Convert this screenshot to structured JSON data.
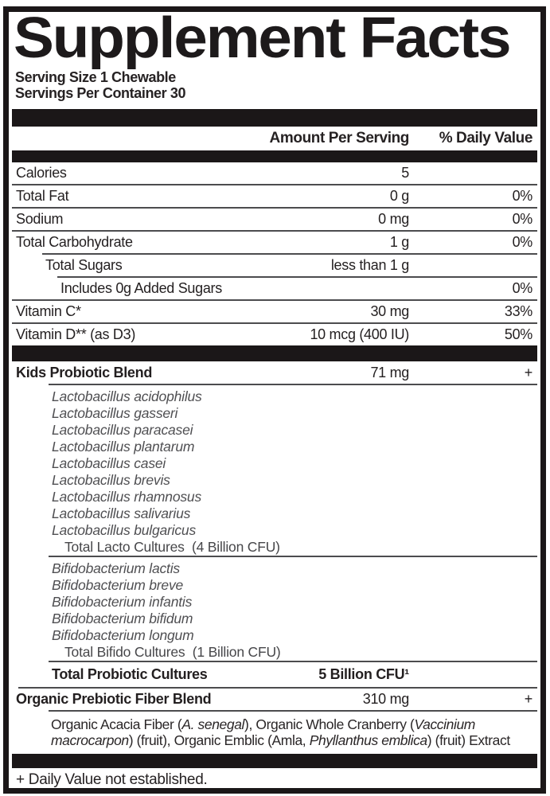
{
  "label": {
    "title": "Supplement Facts",
    "serving_size": "Serving Size 1 Chewable",
    "servings_per_container": "Servings Per Container 30",
    "col_amount": "Amount Per Serving",
    "col_dv": "% Daily Value",
    "footnote": "+ Daily Value not established.",
    "text_color": "#231f20",
    "bar_color": "#1b1718",
    "rule_color": "#4c4c4e"
  },
  "nutrients": [
    {
      "label": "Calories",
      "amount": "5",
      "dv": "",
      "indent": 0,
      "sep": 0
    },
    {
      "label": "Total Fat",
      "amount": "0 g",
      "dv": "0%",
      "indent": 0,
      "sep": 0
    },
    {
      "label": "Sodium",
      "amount": "0 mg",
      "dv": "0%",
      "indent": 0,
      "sep": 0
    },
    {
      "label": "Total Carbohydrate",
      "amount": "1 g",
      "dv": "0%",
      "indent": 0,
      "sep": 38
    },
    {
      "label": "Total Sugars",
      "amount": "less than 1 g",
      "dv": "",
      "indent": 1,
      "sep": 57
    },
    {
      "label": "Includes 0g Added Sugars",
      "amount": "",
      "dv": "0%",
      "indent": 2,
      "sep": 0
    },
    {
      "label": "Vitamin C*",
      "amount": "30 mg",
      "dv": "33%",
      "indent": 0,
      "sep": 0
    },
    {
      "label": "Vitamin D** (as D3)",
      "amount": "10 mcg (400 IU)",
      "dv": "50%",
      "indent": 0,
      "sep": -1
    }
  ],
  "probiotics": {
    "blend": {
      "label": "Kids Probiotic Blend",
      "amount": "71 mg",
      "dv": "+"
    },
    "lacto_species": [
      "Lactobacillus acidophilus",
      "Lactobacillus gasseri",
      "Lactobacillus paracasei",
      "Lactobacillus plantarum",
      "Lactobacillus casei",
      "Lactobacillus brevis",
      "Lactobacillus rhamnosus",
      "Lactobacillus salivarius",
      "Lactobacillus bulgaricus"
    ],
    "lacto_total": "Total Lacto Cultures  (4 Billion CFU)",
    "bifido_species": [
      "Bifidobacterium lactis",
      "Bifidobacterium breve",
      "Bifidobacterium infantis",
      "Bifidobacterium bifidum",
      "Bifidobacterium longum"
    ],
    "bifido_total": "Total Bifido Cultures  (1 Billion CFU)",
    "total": {
      "label": "Total Probiotic Cultures",
      "amount": "5 Billion CFU¹"
    }
  },
  "fiber": {
    "label": "Organic Prebiotic Fiber Blend",
    "amount": "310 mg",
    "dv": "+",
    "description_lines": [
      [
        {
          "t": "Organic Acacia Fiber (",
          "i": false
        },
        {
          "t": "A. senegal",
          "i": true
        },
        {
          "t": "), Organic Whole Cranberry (",
          "i": false
        },
        {
          "t": "Vaccinium",
          "i": true
        }
      ],
      [
        {
          "t": "macrocarpon",
          "i": true
        },
        {
          "t": ") (fruit), Organic Emblic (Amla, ",
          "i": false
        },
        {
          "t": "Phyllanthus emblica",
          "i": true
        },
        {
          "t": ") (fruit) Extract",
          "i": false
        }
      ]
    ]
  }
}
